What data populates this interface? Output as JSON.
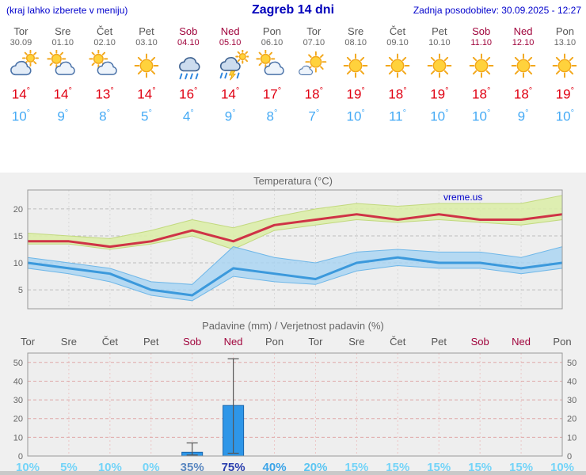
{
  "header": {
    "left_note": "(kraj lahko izberete v meniju)",
    "title": "Zagreb 14 dni",
    "updated": "Zadnja posodobitev: 30.09.2025 - 12:27"
  },
  "colors": {
    "accent_blue": "#0000cc",
    "tmax_red": "#e00012",
    "tmin_blue": "#45aaf5",
    "weekend_red": "#a0043c",
    "weekday_gray": "#555555",
    "panel_bg": "#f0f0f0",
    "bar_blue": "#2e96e8"
  },
  "days": [
    {
      "name": "Tor",
      "date": "30.09",
      "weekend": false,
      "icon": "cloudy",
      "tmax": 14,
      "tmin": 10
    },
    {
      "name": "Sre",
      "date": "01.10",
      "weekend": false,
      "icon": "partly-cloudy",
      "tmax": 14,
      "tmin": 9
    },
    {
      "name": "Čet",
      "date": "02.10",
      "weekend": false,
      "icon": "partly-cloudy",
      "tmax": 13,
      "tmin": 8
    },
    {
      "name": "Pet",
      "date": "03.10",
      "weekend": false,
      "icon": "sunny",
      "tmax": 14,
      "tmin": 5
    },
    {
      "name": "Sob",
      "date": "04.10",
      "weekend": true,
      "icon": "rain",
      "tmax": 16,
      "tmin": 4
    },
    {
      "name": "Ned",
      "date": "05.10",
      "weekend": true,
      "icon": "storm",
      "tmax": 14,
      "tmin": 9
    },
    {
      "name": "Pon",
      "date": "06.10",
      "weekend": false,
      "icon": "partly-cloudy",
      "tmax": 17,
      "tmin": 8
    },
    {
      "name": "Tor",
      "date": "07.10",
      "weekend": false,
      "icon": "mostly-sunny",
      "tmax": 18,
      "tmin": 7
    },
    {
      "name": "Sre",
      "date": "08.10",
      "weekend": false,
      "icon": "sunny",
      "tmax": 19,
      "tmin": 10
    },
    {
      "name": "Čet",
      "date": "09.10",
      "weekend": false,
      "icon": "sunny",
      "tmax": 18,
      "tmin": 11
    },
    {
      "name": "Pet",
      "date": "10.10",
      "weekend": false,
      "icon": "sunny",
      "tmax": 19,
      "tmin": 10
    },
    {
      "name": "Sob",
      "date": "11.10",
      "weekend": true,
      "icon": "sunny",
      "tmax": 18,
      "tmin": 10
    },
    {
      "name": "Ned",
      "date": "12.10",
      "weekend": true,
      "icon": "sunny",
      "tmax": 18,
      "tmin": 9
    },
    {
      "name": "Pon",
      "date": "13.10",
      "weekend": false,
      "icon": "sunny",
      "tmax": 19,
      "tmin": 10
    }
  ],
  "chart_data": [
    {
      "type": "line",
      "title": "Temperatura (°C)",
      "watermark": "vreme.us",
      "ylim": [
        1.5,
        23.5
      ],
      "yticks": [
        5,
        10,
        15,
        20
      ],
      "categories": [
        "Tor",
        "Sre",
        "Čet",
        "Pet",
        "Sob",
        "Ned",
        "Pon",
        "Tor",
        "Sre",
        "Čet",
        "Pet",
        "Sob",
        "Ned",
        "Pon"
      ],
      "series": [
        {
          "name": "max-temp",
          "color": "#cf3346",
          "values": [
            14,
            14,
            13,
            14,
            16,
            14,
            17,
            18,
            19,
            18,
            19,
            18,
            18,
            19
          ]
        },
        {
          "name": "max-temp-band-upper",
          "values": [
            15.5,
            15,
            14.5,
            16,
            18,
            16.5,
            18.5,
            20,
            21,
            20.5,
            21,
            21,
            21,
            22.5
          ]
        },
        {
          "name": "max-temp-band-lower",
          "values": [
            13.5,
            13.5,
            12.5,
            13.5,
            15,
            12.5,
            16,
            17,
            18,
            17.5,
            18,
            17.5,
            17,
            18
          ]
        },
        {
          "name": "min-temp",
          "color": "#3b99dc",
          "values": [
            10,
            9,
            8,
            5,
            4,
            9,
            8,
            7,
            10,
            11,
            10,
            10,
            9,
            10
          ]
        },
        {
          "name": "min-temp-band-upper",
          "values": [
            11,
            10,
            9,
            6.5,
            6,
            13,
            11,
            10,
            12,
            12.5,
            12,
            12,
            11,
            13
          ]
        },
        {
          "name": "min-temp-band-lower",
          "values": [
            9,
            8,
            6.5,
            4,
            3,
            7.5,
            6.5,
            6,
            8.5,
            9.5,
            9,
            9,
            8,
            9
          ]
        }
      ],
      "band_colors": {
        "max_band": "#dcedaa",
        "min_band": "#a6d3f2"
      }
    },
    {
      "type": "bar",
      "title": "Padavine (mm) / Verjetnost padavin (%)",
      "ylim": [
        0,
        55
      ],
      "yticks": [
        0,
        10,
        20,
        30,
        40,
        50
      ],
      "categories": [
        "Tor",
        "Sre",
        "Čet",
        "Pet",
        "Sob",
        "Ned",
        "Pon",
        "Tor",
        "Sre",
        "Čet",
        "Pet",
        "Sob",
        "Ned",
        "Pon"
      ],
      "weekend_flags": [
        false,
        false,
        false,
        false,
        true,
        true,
        false,
        false,
        false,
        false,
        false,
        true,
        true,
        false
      ],
      "values": [
        0,
        0,
        0,
        0,
        2,
        27,
        0,
        0,
        0,
        0,
        0,
        0,
        0,
        0
      ],
      "whisker_low": [
        null,
        null,
        null,
        null,
        0.5,
        1.5,
        null,
        null,
        null,
        null,
        null,
        null,
        null,
        null
      ],
      "whisker_high": [
        null,
        null,
        null,
        null,
        7,
        52,
        null,
        null,
        null,
        null,
        null,
        null,
        null,
        null
      ],
      "bar_color": "#2e96e8",
      "probabilities": [
        {
          "label": "10%",
          "color": "#74d4f8"
        },
        {
          "label": "5%",
          "color": "#74d4f8"
        },
        {
          "label": "10%",
          "color": "#74d4f8"
        },
        {
          "label": "0%",
          "color": "#74d4f8"
        },
        {
          "label": "35%",
          "color": "#5a87c0"
        },
        {
          "label": "75%",
          "color": "#2b3fae"
        },
        {
          "label": "40%",
          "color": "#3ba4e8"
        },
        {
          "label": "20%",
          "color": "#5cc6f2"
        },
        {
          "label": "15%",
          "color": "#74d4f8"
        },
        {
          "label": "15%",
          "color": "#74d4f8"
        },
        {
          "label": "15%",
          "color": "#74d4f8"
        },
        {
          "label": "15%",
          "color": "#74d4f8"
        },
        {
          "label": "15%",
          "color": "#74d4f8"
        },
        {
          "label": "10%",
          "color": "#74d4f8"
        }
      ]
    }
  ]
}
